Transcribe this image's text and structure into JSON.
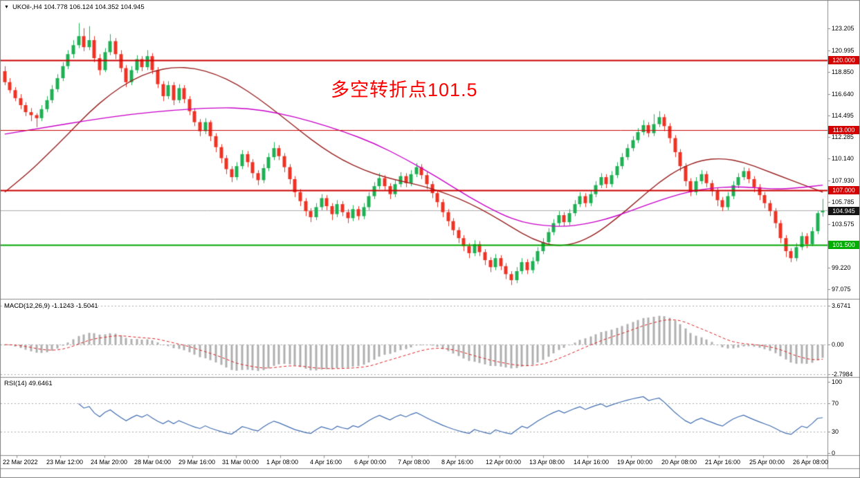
{
  "window": {
    "title": "UKOil-,H4 104.778 106.124 104.352 104.945",
    "menu_arrow_icon": "▼"
  },
  "annotation": {
    "text": "多空转折点101.5",
    "color": "#ff0000"
  },
  "chart_data": {
    "type": "candlestick",
    "symbol": "UKOil-",
    "timeframe": "H4",
    "ohlc_display": {
      "open": "104.778",
      "high": "106.124",
      "low": "104.352",
      "close": "104.945"
    },
    "price_range": {
      "max": 125.6,
      "min": 96.2
    },
    "price_axis_labels": [
      "123.205",
      "120.995",
      "118.850",
      "116.640",
      "114.495",
      "112.285",
      "110.140",
      "107.930",
      "105.785",
      "103.575",
      "101.430",
      "99.220",
      "97.075"
    ],
    "time_axis_labels": [
      "22 Mar 2022",
      "23 Mar 12:00",
      "24 Mar 20:00",
      "28 Mar 04:00",
      "29 Mar 16:00",
      "31 Mar 00:00",
      "1 Apr 08:00",
      "4 Apr 16:00",
      "6 Apr 00:00",
      "7 Apr 08:00",
      "8 Apr 16:00",
      "12 Apr 00:00",
      "13 Apr 08:00",
      "14 Apr 16:00",
      "19 Apr 00:00",
      "20 Apr 08:00",
      "21 Apr 16:00",
      "25 Apr 00:00",
      "26 Apr 08:00"
    ],
    "levels": [
      {
        "value": 120.0,
        "label": "120.000",
        "color": "#cc0000",
        "badge": "#d40000",
        "width": 2
      },
      {
        "value": 113.0,
        "label": "113.000",
        "color": "#cc0000",
        "badge": "#d40000",
        "width": 1
      },
      {
        "value": 107.0,
        "label": "107.000",
        "color": "#cc0000",
        "badge": "#d40000",
        "width": 2
      },
      {
        "value": 101.5,
        "label": "101.500",
        "color": "#00a500",
        "badge": "#00ad00",
        "width": 2
      }
    ],
    "current_price": {
      "value": 104.945,
      "label": "104.945",
      "line_color": "#ababab",
      "badge_color": "#151515"
    },
    "overlays": {
      "ma_slow": {
        "name": "ma-magenta",
        "color": "#c800c8",
        "points": [
          [
            0,
            112.6
          ],
          [
            8,
            113.3
          ],
          [
            16,
            114.0
          ],
          [
            24,
            114.6
          ],
          [
            32,
            115.0
          ],
          [
            40,
            115.25
          ],
          [
            46,
            115.2
          ],
          [
            52,
            114.7
          ],
          [
            58,
            113.9
          ],
          [
            64,
            112.9
          ],
          [
            70,
            111.7
          ],
          [
            76,
            110.1
          ],
          [
            82,
            108.3
          ],
          [
            88,
            106.3
          ],
          [
            94,
            104.6
          ],
          [
            98,
            103.8
          ],
          [
            102,
            103.45
          ],
          [
            106,
            103.35
          ],
          [
            110,
            103.6
          ],
          [
            114,
            104.1
          ],
          [
            118,
            104.8
          ],
          [
            122,
            105.6
          ],
          [
            126,
            106.3
          ],
          [
            130,
            106.9
          ],
          [
            134,
            107.2
          ],
          [
            138,
            107.35
          ],
          [
            142,
            107.25
          ],
          [
            146,
            107.1
          ],
          [
            150,
            107.2
          ],
          [
            155,
            107.5
          ]
        ]
      },
      "ma_fast": {
        "name": "ma-maroon",
        "color": "#992121",
        "points": [
          [
            0,
            106.8
          ],
          [
            4,
            108.5
          ],
          [
            8,
            110.5
          ],
          [
            12,
            112.6
          ],
          [
            16,
            114.8
          ],
          [
            20,
            116.6
          ],
          [
            24,
            118.0
          ],
          [
            28,
            118.9
          ],
          [
            32,
            119.3
          ],
          [
            36,
            119.2
          ],
          [
            40,
            118.6
          ],
          [
            44,
            117.6
          ],
          [
            48,
            116.2
          ],
          [
            52,
            114.6
          ],
          [
            56,
            112.9
          ],
          [
            60,
            111.3
          ],
          [
            64,
            110.0
          ],
          [
            68,
            109.0
          ],
          [
            72,
            108.3
          ],
          [
            76,
            107.8
          ],
          [
            80,
            107.3
          ],
          [
            84,
            106.6
          ],
          [
            88,
            105.7
          ],
          [
            92,
            104.6
          ],
          [
            96,
            103.3
          ],
          [
            100,
            102.1
          ],
          [
            104,
            101.4
          ],
          [
            108,
            101.6
          ],
          [
            112,
            102.6
          ],
          [
            116,
            104.2
          ],
          [
            120,
            106.0
          ],
          [
            124,
            107.8
          ],
          [
            128,
            109.2
          ],
          [
            132,
            110.0
          ],
          [
            136,
            110.2
          ],
          [
            140,
            109.8
          ],
          [
            144,
            109.0
          ],
          [
            148,
            108.2
          ],
          [
            152,
            107.4
          ],
          [
            155,
            106.8
          ]
        ]
      }
    },
    "indicators": {
      "macd": {
        "label": "MACD(12,26,9) -1.1243 -1.5041",
        "fast": 12,
        "slow": 26,
        "signal": 9,
        "value": "-1.1243",
        "signal_value": "-1.5041",
        "axis_labels": [
          "3.6741",
          "0.00",
          "-2.7984"
        ],
        "axis_values": [
          3.6741,
          0,
          -2.7984
        ],
        "range": {
          "max": 4.06,
          "min": -2.99
        },
        "histogram_color": "#b0b0b0",
        "signal_color": "#e02020"
      },
      "rsi": {
        "label": "RSI(14) 49.6461",
        "period": 14,
        "value": "49.6461",
        "axis_labels": [
          "100",
          "70",
          "30",
          "0"
        ],
        "axis_values": [
          100,
          70,
          30,
          0
        ],
        "guide_values": [
          70,
          30
        ],
        "line_color": "#3f6cb0"
      }
    },
    "colors": {
      "bull": "#1eb053",
      "bear": "#ee3224",
      "background": "#ffffff",
      "frame": "#7f7f7f"
    },
    "candles": [
      [
        118.9,
        119.4,
        117.5,
        117.8
      ],
      [
        117.8,
        118.2,
        116.7,
        117.0
      ],
      [
        117.0,
        117.3,
        115.9,
        116.2
      ],
      [
        116.2,
        116.6,
        115.1,
        115.5
      ],
      [
        115.5,
        115.8,
        114.4,
        114.8
      ],
      [
        114.8,
        115.2,
        113.9,
        114.5
      ],
      [
        114.5,
        114.7,
        113.3,
        114.2
      ],
      [
        114.2,
        115.5,
        113.9,
        115.1
      ],
      [
        115.1,
        116.4,
        114.8,
        116.0
      ],
      [
        116.0,
        117.5,
        115.7,
        117.1
      ],
      [
        117.1,
        118.6,
        116.8,
        118.2
      ],
      [
        118.2,
        119.8,
        117.9,
        119.4
      ],
      [
        119.4,
        121.0,
        119.1,
        120.6
      ],
      [
        120.6,
        122.0,
        120.2,
        121.5
      ],
      [
        121.5,
        123.7,
        121.2,
        122.4
      ],
      [
        122.4,
        123.2,
        120.9,
        121.3
      ],
      [
        121.3,
        123.4,
        121.0,
        122.0
      ],
      [
        122.0,
        122.4,
        119.8,
        120.2
      ],
      [
        120.2,
        120.6,
        118.5,
        119.0
      ],
      [
        119.0,
        121.2,
        118.8,
        120.8
      ],
      [
        120.8,
        122.6,
        120.5,
        121.9
      ],
      [
        121.9,
        122.2,
        120.1,
        120.6
      ],
      [
        120.6,
        121.0,
        118.8,
        119.2
      ],
      [
        119.2,
        119.5,
        117.3,
        117.8
      ],
      [
        117.8,
        119.4,
        117.5,
        119.0
      ],
      [
        119.0,
        120.5,
        118.7,
        120.1
      ],
      [
        120.1,
        120.4,
        118.9,
        119.3
      ],
      [
        119.3,
        121.0,
        119.0,
        120.4
      ],
      [
        120.4,
        120.7,
        118.6,
        119.0
      ],
      [
        119.0,
        119.3,
        117.2,
        117.6
      ],
      [
        117.6,
        117.9,
        115.9,
        116.4
      ],
      [
        116.4,
        117.9,
        116.1,
        117.5
      ],
      [
        117.5,
        117.8,
        115.5,
        116.0
      ],
      [
        116.0,
        117.6,
        115.7,
        117.2
      ],
      [
        117.2,
        117.5,
        115.7,
        116.1
      ],
      [
        116.1,
        116.4,
        114.5,
        114.9
      ],
      [
        114.9,
        115.2,
        113.4,
        113.8
      ],
      [
        113.8,
        114.1,
        112.4,
        112.9
      ],
      [
        112.9,
        114.2,
        112.6,
        113.8
      ],
      [
        113.8,
        114.0,
        111.9,
        112.4
      ],
      [
        112.4,
        112.7,
        110.8,
        111.3
      ],
      [
        111.3,
        111.6,
        109.7,
        110.2
      ],
      [
        110.2,
        110.5,
        108.6,
        109.1
      ],
      [
        109.1,
        109.4,
        107.8,
        108.3
      ],
      [
        108.3,
        109.8,
        108.0,
        109.4
      ],
      [
        109.4,
        111.0,
        109.1,
        110.6
      ],
      [
        110.6,
        110.9,
        109.3,
        109.8
      ],
      [
        109.8,
        110.1,
        108.2,
        108.7
      ],
      [
        108.7,
        109.0,
        107.5,
        108.0
      ],
      [
        108.0,
        109.6,
        107.7,
        109.2
      ],
      [
        109.2,
        110.7,
        108.9,
        110.3
      ],
      [
        110.3,
        111.8,
        110.0,
        111.2
      ],
      [
        111.2,
        111.5,
        110.0,
        110.4
      ],
      [
        110.4,
        110.7,
        108.8,
        109.3
      ],
      [
        109.3,
        109.6,
        107.6,
        108.1
      ],
      [
        108.1,
        108.4,
        106.3,
        106.8
      ],
      [
        106.8,
        107.1,
        105.4,
        105.9
      ],
      [
        105.9,
        106.2,
        104.4,
        104.9
      ],
      [
        104.9,
        105.2,
        103.8,
        104.3
      ],
      [
        104.3,
        105.7,
        104.0,
        105.3
      ],
      [
        105.3,
        106.6,
        105.0,
        106.2
      ],
      [
        106.2,
        106.5,
        105.0,
        105.4
      ],
      [
        105.4,
        105.7,
        104.0,
        104.6
      ],
      [
        104.6,
        106.0,
        104.3,
        105.6
      ],
      [
        105.6,
        105.9,
        104.4,
        104.8
      ],
      [
        104.8,
        105.1,
        103.7,
        104.2
      ],
      [
        104.2,
        105.5,
        103.9,
        105.1
      ],
      [
        105.1,
        105.4,
        104.0,
        104.4
      ],
      [
        104.4,
        105.7,
        104.1,
        105.3
      ],
      [
        105.3,
        106.8,
        105.0,
        106.4
      ],
      [
        106.4,
        107.8,
        106.1,
        107.4
      ],
      [
        107.4,
        108.7,
        107.1,
        108.2
      ],
      [
        108.2,
        108.5,
        107.0,
        107.4
      ],
      [
        107.4,
        107.7,
        106.1,
        106.6
      ],
      [
        106.6,
        108.0,
        106.3,
        107.6
      ],
      [
        107.6,
        108.8,
        107.3,
        108.4
      ],
      [
        108.4,
        108.7,
        107.3,
        107.7
      ],
      [
        107.7,
        109.0,
        107.4,
        108.6
      ],
      [
        108.6,
        109.7,
        108.3,
        109.3
      ],
      [
        109.3,
        109.6,
        108.1,
        108.5
      ],
      [
        108.5,
        108.8,
        107.1,
        107.6
      ],
      [
        107.6,
        107.9,
        106.2,
        106.7
      ],
      [
        106.7,
        107.0,
        105.3,
        105.8
      ],
      [
        105.8,
        106.1,
        104.3,
        104.8
      ],
      [
        104.8,
        105.1,
        103.4,
        103.9
      ],
      [
        103.9,
        104.2,
        102.5,
        103.0
      ],
      [
        103.0,
        103.3,
        101.7,
        102.2
      ],
      [
        102.2,
        102.5,
        100.9,
        101.4
      ],
      [
        101.4,
        101.7,
        100.2,
        100.7
      ],
      [
        100.7,
        102.0,
        100.4,
        101.6
      ],
      [
        101.6,
        101.9,
        100.4,
        100.8
      ],
      [
        100.8,
        101.1,
        99.5,
        100.0
      ],
      [
        100.0,
        100.3,
        98.8,
        99.3
      ],
      [
        99.3,
        100.6,
        99.0,
        100.2
      ],
      [
        100.2,
        100.5,
        99.0,
        99.4
      ],
      [
        99.4,
        99.7,
        98.1,
        98.6
      ],
      [
        98.6,
        98.9,
        97.5,
        98.0
      ],
      [
        98.0,
        99.3,
        97.7,
        98.9
      ],
      [
        98.9,
        100.2,
        98.6,
        99.8
      ],
      [
        99.8,
        100.1,
        98.6,
        99.0
      ],
      [
        99.0,
        100.3,
        98.7,
        99.9
      ],
      [
        99.9,
        101.3,
        99.6,
        100.9
      ],
      [
        100.9,
        102.2,
        100.6,
        101.8
      ],
      [
        101.8,
        103.2,
        101.5,
        102.8
      ],
      [
        102.8,
        104.1,
        102.5,
        103.7
      ],
      [
        103.7,
        104.9,
        103.4,
        104.5
      ],
      [
        104.5,
        104.8,
        103.4,
        103.8
      ],
      [
        103.8,
        105.1,
        103.5,
        104.7
      ],
      [
        104.7,
        106.0,
        104.4,
        105.6
      ],
      [
        105.6,
        106.8,
        105.3,
        106.4
      ],
      [
        106.4,
        106.7,
        105.3,
        105.7
      ],
      [
        105.7,
        107.0,
        105.4,
        106.6
      ],
      [
        106.6,
        107.9,
        106.3,
        107.5
      ],
      [
        107.5,
        108.7,
        107.2,
        108.3
      ],
      [
        108.3,
        108.6,
        107.2,
        107.6
      ],
      [
        107.6,
        108.9,
        107.3,
        108.5
      ],
      [
        108.5,
        109.8,
        108.2,
        109.4
      ],
      [
        109.4,
        110.7,
        109.1,
        110.3
      ],
      [
        110.3,
        111.6,
        110.0,
        111.2
      ],
      [
        111.2,
        112.4,
        110.9,
        112.0
      ],
      [
        112.0,
        113.2,
        111.7,
        112.8
      ],
      [
        112.8,
        114.0,
        112.5,
        113.5
      ],
      [
        113.5,
        113.8,
        112.3,
        112.7
      ],
      [
        112.7,
        114.6,
        112.4,
        113.6
      ],
      [
        113.6,
        114.9,
        113.3,
        114.3
      ],
      [
        114.3,
        114.6,
        112.9,
        113.4
      ],
      [
        113.4,
        113.7,
        111.7,
        112.2
      ],
      [
        112.2,
        112.5,
        110.3,
        110.8
      ],
      [
        110.8,
        111.1,
        108.9,
        109.4
      ],
      [
        109.4,
        109.7,
        107.4,
        107.9
      ],
      [
        107.9,
        108.2,
        106.4,
        106.8
      ],
      [
        106.8,
        108.3,
        106.5,
        107.9
      ],
      [
        107.9,
        109.0,
        107.6,
        108.6
      ],
      [
        108.6,
        108.9,
        107.3,
        107.7
      ],
      [
        107.7,
        108.0,
        106.4,
        106.9
      ],
      [
        106.9,
        107.2,
        105.4,
        106.0
      ],
      [
        106.0,
        106.3,
        104.9,
        105.3
      ],
      [
        105.3,
        106.8,
        105.0,
        106.4
      ],
      [
        106.4,
        107.9,
        106.1,
        107.5
      ],
      [
        107.5,
        108.7,
        107.2,
        108.3
      ],
      [
        108.3,
        109.3,
        108.0,
        108.9
      ],
      [
        108.9,
        109.2,
        107.7,
        108.1
      ],
      [
        108.1,
        108.4,
        106.8,
        107.3
      ],
      [
        107.3,
        107.6,
        106.0,
        106.5
      ],
      [
        106.5,
        106.8,
        105.2,
        105.7
      ],
      [
        105.7,
        106.0,
        104.4,
        104.9
      ],
      [
        104.9,
        105.2,
        103.2,
        103.7
      ],
      [
        103.7,
        104.0,
        101.7,
        102.2
      ],
      [
        102.2,
        102.5,
        100.3,
        100.9
      ],
      [
        100.9,
        101.2,
        99.8,
        100.2
      ],
      [
        100.2,
        101.7,
        99.9,
        101.3
      ],
      [
        101.3,
        102.8,
        101.0,
        102.4
      ],
      [
        102.4,
        102.7,
        101.2,
        101.6
      ],
      [
        101.6,
        103.3,
        101.4,
        102.9
      ],
      [
        102.9,
        104.9,
        102.6,
        104.7
      ],
      [
        104.778,
        106.124,
        104.352,
        104.945
      ]
    ]
  }
}
